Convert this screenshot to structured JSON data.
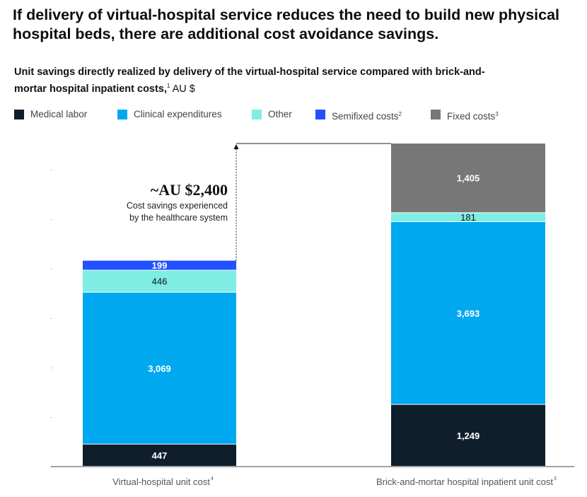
{
  "headline": "If delivery of virtual-hospital service reduces the need to build new physical hospital beds, there are additional cost avoidance savings.",
  "subtitle": {
    "bold": "Unit savings directly realized by delivery of the virtual-hospital service compared with brick-and-mortar hospital inpatient costs,",
    "sup": "1",
    "unit": " AU $"
  },
  "chart_data": {
    "type": "bar",
    "stacked": true,
    "categories": [
      "Virtual-hospital unit cost",
      "Brick-and-mortar hospital inpatient unit cost"
    ],
    "category_footnotes": [
      "4",
      "3"
    ],
    "series": [
      {
        "name": "Medical labor",
        "footnote": "",
        "color": "#0f1e2d",
        "values": [
          447,
          1249
        ]
      },
      {
        "name": "Clinical expenditures",
        "footnote": "",
        "color": "#00a8f0",
        "values": [
          3069,
          3693
        ]
      },
      {
        "name": "Other",
        "footnote": "",
        "color": "#7eeee4",
        "values": [
          446,
          181
        ]
      },
      {
        "name": "Semifixed costs",
        "footnote": "2",
        "color": "#2251ff",
        "values": [
          199,
          null
        ]
      },
      {
        "name": "Fixed costs",
        "footnote": "3",
        "color": "#777777",
        "values": [
          null,
          1405
        ]
      }
    ],
    "value_labels": [
      [
        "447",
        "3,069",
        "446",
        "199",
        ""
      ],
      [
        "1,249",
        "3,693",
        "181",
        "",
        "1,405"
      ]
    ],
    "label_styles": [
      [
        "light",
        "light",
        "dark",
        "light",
        ""
      ],
      [
        "light",
        "light",
        "dark",
        "",
        "light"
      ]
    ],
    "ylim": [
      0,
      6528
    ],
    "legend_position": "top-left",
    "grid": false,
    "annotation": {
      "headline": "~AU $2,400",
      "line1": "Cost savings experienced",
      "line2": "by the healthcare system"
    }
  }
}
